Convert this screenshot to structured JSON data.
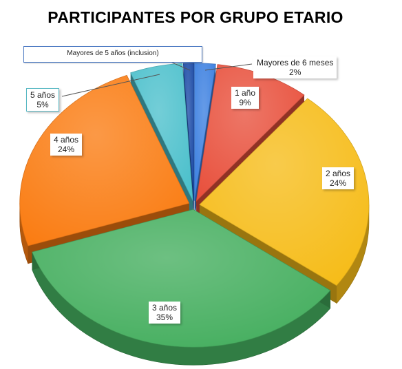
{
  "chart_data": {
    "type": "pie",
    "title": "PARTICIPANTES POR GRUPO ETARIO",
    "slices": [
      {
        "label": "Mayores de 6 meses",
        "value": 2,
        "display": "2%",
        "color": "#3b7fe0"
      },
      {
        "label": "1 año",
        "value": 9,
        "display": "9%",
        "color": "#e8503c"
      },
      {
        "label": "2 años",
        "value": 24,
        "display": "24%",
        "color": "#f6bc18"
      },
      {
        "label": "3 años",
        "value": 35,
        "display": "35%",
        "color": "#44ae5e"
      },
      {
        "label": "4 años",
        "value": 24,
        "display": "24%",
        "color": "#fa7c12"
      },
      {
        "label": "5 años",
        "value": 5,
        "display": "5%",
        "color": "#4cc0cc"
      },
      {
        "label": "Mayores de 5 años (inclusion)",
        "value": 1,
        "display": "",
        "color": "#1b4aa6"
      }
    ]
  }
}
